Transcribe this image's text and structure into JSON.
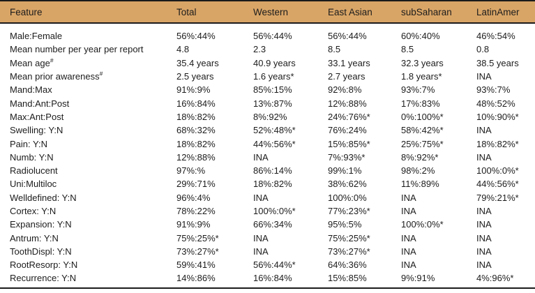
{
  "colors": {
    "header_bg": "#D9A566",
    "rule": "#1b1b1b",
    "text": "#1c1c1c",
    "body_bg": "#ffffff"
  },
  "table": {
    "columns": [
      "Feature",
      "Total",
      "Western",
      "East Asian",
      "subSaharan",
      "LatinAmer"
    ],
    "rows": [
      {
        "feature": "Male:Female",
        "sup": "",
        "values": [
          "56%:44%",
          "56%:44%",
          "56%:44%",
          "60%:40%",
          "46%:54%"
        ]
      },
      {
        "feature": "Mean number per year per report",
        "sup": "",
        "values": [
          "4.8",
          "2.3",
          "8.5",
          "8.5",
          "0.8"
        ]
      },
      {
        "feature": "Mean age",
        "sup": "#",
        "values": [
          "35.4 years",
          "40.9 years",
          "33.1 years",
          "32.3 years",
          "38.5 years"
        ]
      },
      {
        "feature": "Mean prior awareness",
        "sup": "#",
        "values": [
          "2.5 years",
          "1.6 years*",
          "2.7 years",
          "1.8 years*",
          "INA"
        ]
      },
      {
        "feature": "Mand:Max",
        "sup": "",
        "values": [
          "91%:9%",
          "85%:15%",
          "92%:8%",
          "93%:7%",
          "93%:7%"
        ]
      },
      {
        "feature": "Mand:Ant:Post",
        "sup": "",
        "values": [
          "16%:84%",
          "13%:87%",
          "12%:88%",
          "17%:83%",
          "48%:52%"
        ]
      },
      {
        "feature": "Max:Ant:Post",
        "sup": "",
        "values": [
          "18%:82%",
          "8%:92%",
          "24%:76%*",
          "0%:100%*",
          "10%:90%*"
        ]
      },
      {
        "feature": "Swelling: Y:N",
        "sup": "",
        "values": [
          "68%:32%",
          "52%:48%*",
          "76%:24%",
          "58%:42%*",
          "INA"
        ]
      },
      {
        "feature": "Pain: Y:N",
        "sup": "",
        "values": [
          "18%:82%",
          "44%:56%*",
          "15%:85%*",
          "25%:75%*",
          "18%:82%*"
        ]
      },
      {
        "feature": "Numb: Y:N",
        "sup": "",
        "values": [
          "12%:88%",
          "INA",
          "7%:93%*",
          "8%:92%*",
          "INA"
        ]
      },
      {
        "feature": "Radiolucent",
        "sup": "",
        "values": [
          "97%:%",
          "86%:14%",
          "99%:1%",
          "98%:2%",
          "100%:0%*"
        ]
      },
      {
        "feature": "Uni:Multiloc",
        "sup": "",
        "values": [
          "29%:71%",
          "18%:82%",
          "38%:62%",
          "11%:89%",
          "44%:56%*"
        ]
      },
      {
        "feature": "Welldefined: Y:N",
        "sup": "",
        "values": [
          "96%:4%",
          "INA",
          "100%:0%",
          "INA",
          "79%:21%*"
        ]
      },
      {
        "feature": "Cortex: Y:N",
        "sup": "",
        "values": [
          "78%:22%",
          "100%:0%*",
          "77%:23%*",
          "INA",
          "INA"
        ]
      },
      {
        "feature": "Expansion: Y:N",
        "sup": "",
        "values": [
          "91%:9%",
          "66%:34%",
          "95%:5%",
          "100%:0%*",
          "INA"
        ]
      },
      {
        "feature": "Antrum: Y:N",
        "sup": "",
        "values": [
          "75%:25%*",
          "INA",
          "75%:25%*",
          "INA",
          "INA"
        ]
      },
      {
        "feature": "ToothDispl: Y:N",
        "sup": "",
        "values": [
          "73%:27%*",
          "INA",
          "73%:27%*",
          "INA",
          "INA"
        ]
      },
      {
        "feature": "RootResorp: Y:N",
        "sup": "",
        "values": [
          "59%:41%",
          "56%:44%*",
          "64%:36%",
          "INA",
          "INA"
        ]
      },
      {
        "feature": "Recurrence: Y:N",
        "sup": "",
        "values": [
          "14%:86%",
          "16%:84%",
          "15%:85%",
          "9%:91%",
          "4%:96%*"
        ]
      }
    ]
  }
}
